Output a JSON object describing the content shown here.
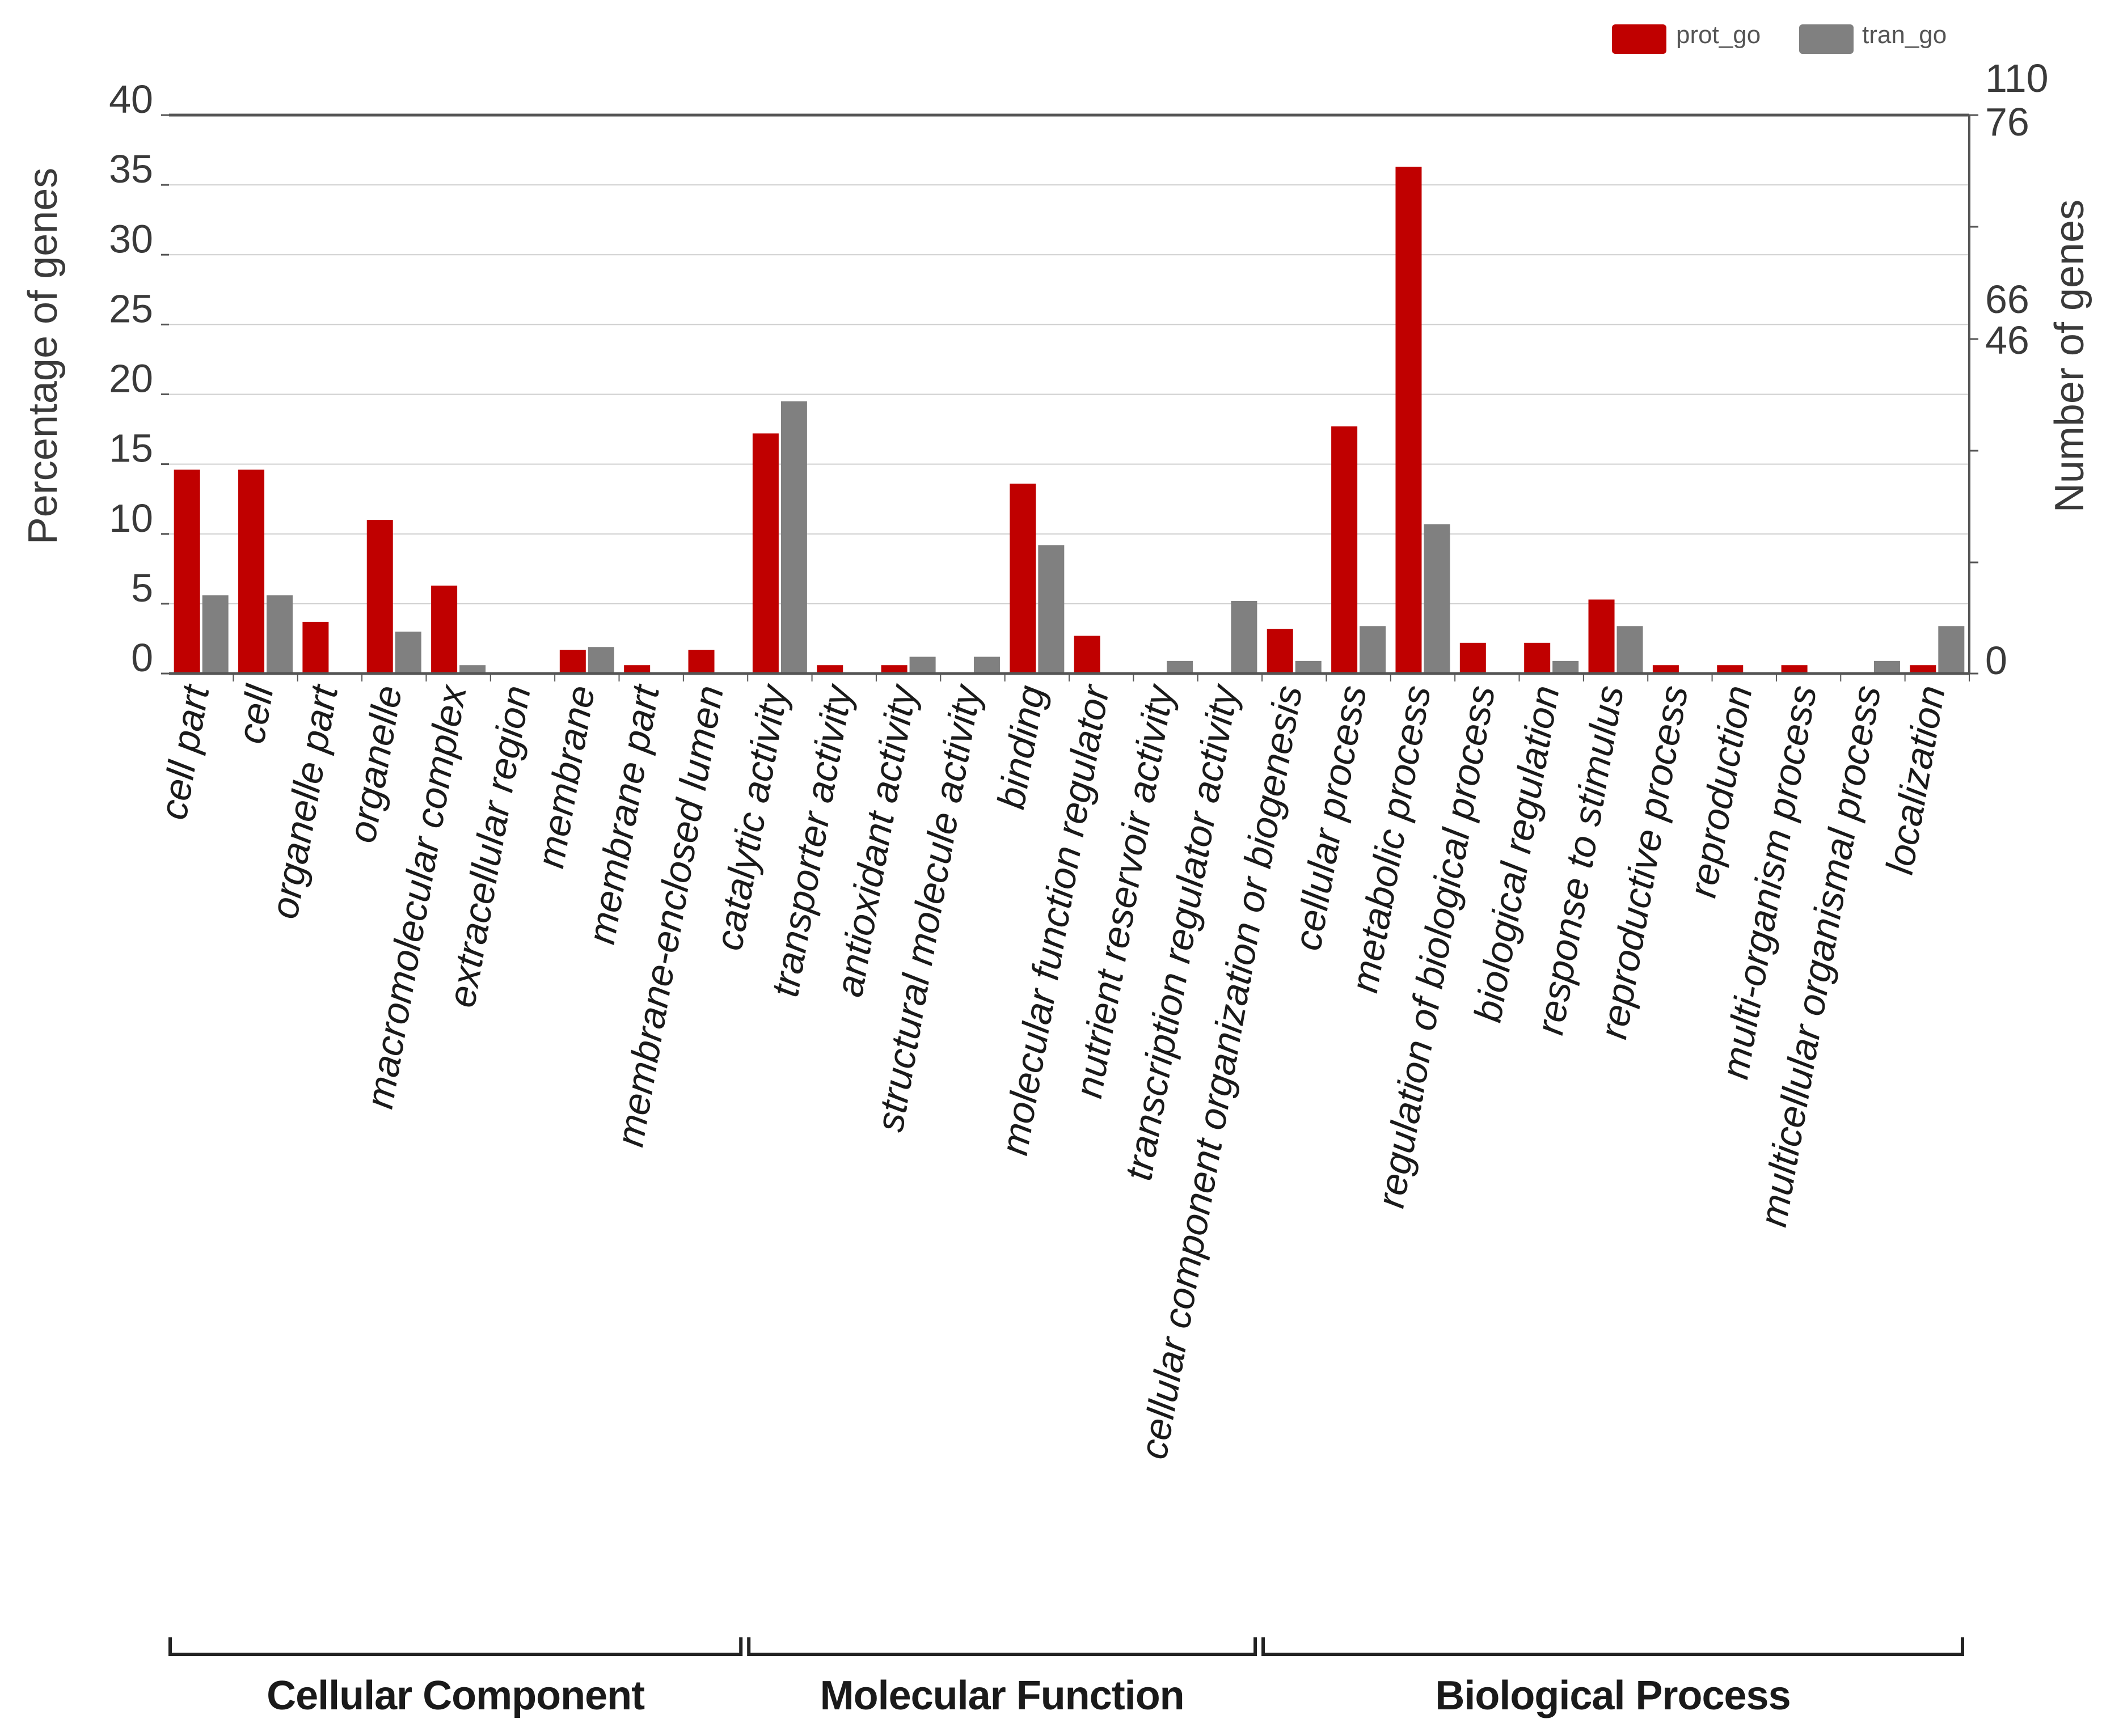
{
  "chart_data": {
    "type": "bar",
    "ylabel": "Percentage of genes",
    "y2label": "Number of genes",
    "ylim": [
      0,
      40
    ],
    "y_ticks": [
      "0",
      "5",
      "10",
      "15",
      "20",
      "25",
      "30",
      "35",
      "40"
    ],
    "y2_ticks": [
      "0",
      "46",
      "66",
      "76",
      "110"
    ],
    "grid": true,
    "legend_position": "top-right",
    "categories": [
      "cell part",
      "cell",
      "organelle part",
      "organelle",
      "macromolecular complex",
      "extracellular region",
      "membrane",
      "membrane part",
      "membrane-enclosed lumen",
      "catalytic activity",
      "transporter activity",
      "antioxidant activity",
      "structural molecule activity",
      "binding",
      "molecular function regulator",
      "nutrient reservoir activity",
      "transcription regulator activity",
      "cellular component organization or biogenesis",
      "cellular process",
      "metabolic process",
      "regulation of biological process",
      "biological regulation",
      "response to stimulus",
      "reproductive process",
      "reproduction",
      "multi-organism process",
      "multicellular organismal process",
      "localization"
    ],
    "series": [
      {
        "name": "prot_go",
        "color": "#c00000",
        "values": [
          14.6,
          14.6,
          3.7,
          11.0,
          6.3,
          0,
          1.7,
          0.6,
          1.7,
          17.2,
          0.6,
          0.6,
          0,
          13.6,
          2.7,
          0,
          0,
          3.2,
          17.7,
          36.3,
          2.2,
          2.2,
          5.3,
          0.6,
          0.6,
          0.6,
          0,
          0.6
        ]
      },
      {
        "name": "tran_go",
        "color": "#808080",
        "values": [
          5.6,
          5.6,
          0,
          3.0,
          0.6,
          0,
          1.9,
          0,
          0,
          19.5,
          0,
          1.2,
          1.2,
          9.2,
          0,
          0.9,
          5.2,
          0.9,
          3.4,
          10.7,
          0,
          0.9,
          3.4,
          0,
          0,
          0,
          0.9,
          3.4
        ]
      }
    ],
    "groups": [
      {
        "label": "Cellular Component",
        "first": 0,
        "last": 8
      },
      {
        "label": "Molecular Function",
        "first": 9,
        "last": 16
      },
      {
        "label": "Biological Process",
        "first": 17,
        "last": 27
      }
    ]
  }
}
